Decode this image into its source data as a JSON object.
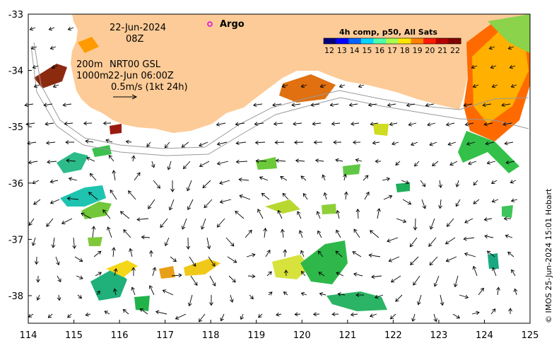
{
  "map": {
    "date": "22-Jun-2024",
    "hour": "08Z",
    "marker_label": "Argo",
    "marker_color": "#e000e0",
    "isobath_labels": [
      "200m",
      "1000m"
    ],
    "product": "NRT00 GSL",
    "product_time": "22-Jun 06:00Z",
    "scale_label": "0.5m/s (1kt 24h)",
    "land_color": "#fdcb97",
    "sea_color": "#ffffff"
  },
  "colorbar": {
    "title": "4h comp, p50, All Sats",
    "ticks": [
      "12",
      "13",
      "14",
      "15",
      "16",
      "17",
      "18",
      "19",
      "20",
      "21",
      "22"
    ],
    "colors": [
      "#00007f",
      "#0000ff",
      "#0063ff",
      "#00d4ff",
      "#4effa9",
      "#a9ff4e",
      "#ffe600",
      "#ff8000",
      "#ff1a00",
      "#b20000",
      "#7f0000"
    ]
  },
  "axes": {
    "x_ticks": [
      "114",
      "115",
      "116",
      "117",
      "118",
      "119",
      "120",
      "121",
      "122",
      "123",
      "124",
      "125"
    ],
    "y_ticks": [
      "-33",
      "-34",
      "-35",
      "-36",
      "-37",
      "-38"
    ]
  },
  "credit": "© IMOS 25-Jun-2024 15:01 Hobart"
}
